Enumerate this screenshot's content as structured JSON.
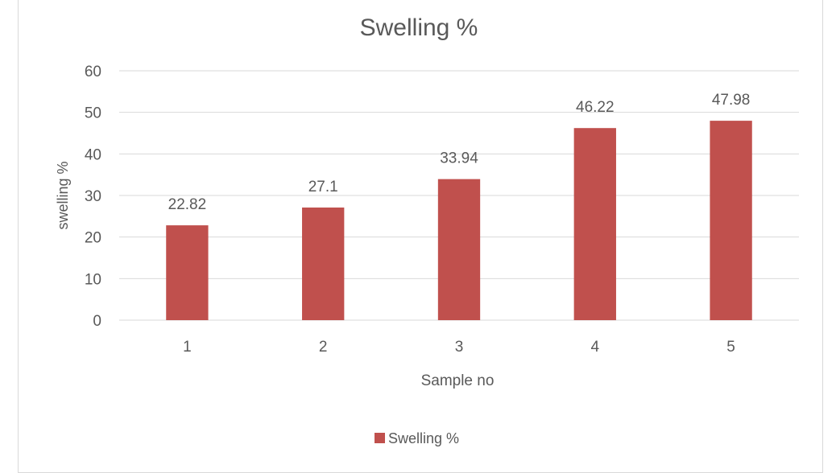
{
  "chart_data": {
    "type": "bar",
    "title": "Swelling %",
    "xlabel": "Sample no",
    "ylabel": "swelling %",
    "categories": [
      "1",
      "2",
      "3",
      "4",
      "5"
    ],
    "series": [
      {
        "name": "Swelling %",
        "values": [
          22.82,
          27.1,
          33.94,
          46.22,
          47.98
        ],
        "labels": [
          "22.82",
          "27.1",
          "33.94",
          "46.22",
          "47.98"
        ]
      }
    ],
    "ylim": [
      0,
      60
    ],
    "yticks": [
      0,
      10,
      20,
      30,
      40,
      50,
      60
    ],
    "grid": true,
    "legend": "bottom",
    "colors": {
      "bar": "#c0504d",
      "grid": "#d9d9d9",
      "text": "#595959"
    }
  }
}
